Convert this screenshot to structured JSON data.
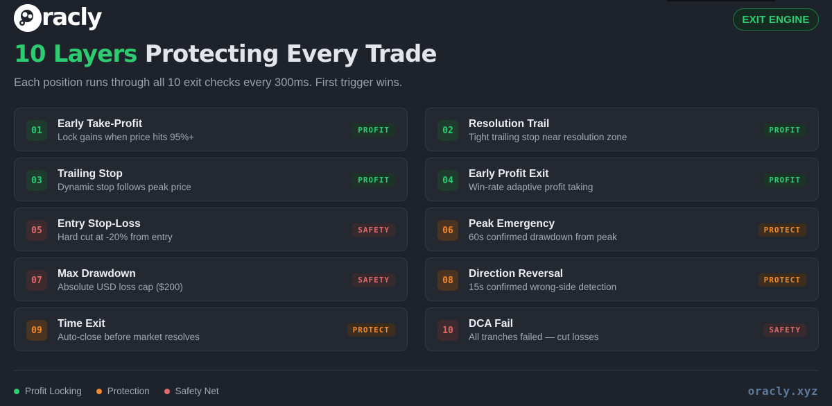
{
  "brand": {
    "logo_text": "racly",
    "logo_icon": "oracly-logo-icon",
    "site": "oracly.xyz"
  },
  "header": {
    "exit_button_label": "EXIT ENGINE",
    "title_accent": "10 Layers",
    "title_rest": "Protecting Every Trade",
    "subtitle": "Each position runs through all 10 exit checks every 300ms. First trigger wins."
  },
  "colors": {
    "profit": "#2ecc71",
    "protect": "#f08a2c",
    "safety": "#e06a6a"
  },
  "layers": [
    {
      "num": "01",
      "title": "Early Take-Profit",
      "desc": "Lock gains when price hits 95%+",
      "badge": "PROFIT",
      "kind": "profit"
    },
    {
      "num": "02",
      "title": "Resolution Trail",
      "desc": "Tight trailing stop near resolution zone",
      "badge": "PROFIT",
      "kind": "profit"
    },
    {
      "num": "03",
      "title": "Trailing Stop",
      "desc": "Dynamic stop follows peak price",
      "badge": "PROFIT",
      "kind": "profit"
    },
    {
      "num": "04",
      "title": "Early Profit Exit",
      "desc": "Win-rate adaptive profit taking",
      "badge": "PROFIT",
      "kind": "profit"
    },
    {
      "num": "05",
      "title": "Entry Stop-Loss",
      "desc": "Hard cut at -20% from entry",
      "badge": "SAFETY",
      "kind": "safety"
    },
    {
      "num": "06",
      "title": "Peak Emergency",
      "desc": "60s confirmed drawdown from peak",
      "badge": "PROTECT",
      "kind": "protect"
    },
    {
      "num": "07",
      "title": "Max Drawdown",
      "desc": "Absolute USD loss cap ($200)",
      "badge": "SAFETY",
      "kind": "safety"
    },
    {
      "num": "08",
      "title": "Direction Reversal",
      "desc": "15s confirmed wrong-side detection",
      "badge": "PROTECT",
      "kind": "protect"
    },
    {
      "num": "09",
      "title": "Time Exit",
      "desc": "Auto-close before market resolves",
      "badge": "PROTECT",
      "kind": "protect"
    },
    {
      "num": "10",
      "title": "DCA Fail",
      "desc": "All tranches failed — cut losses",
      "badge": "SAFETY",
      "kind": "safety"
    }
  ],
  "legend": [
    {
      "label": "Profit Locking",
      "kind": "profit"
    },
    {
      "label": "Protection",
      "kind": "protect"
    },
    {
      "label": "Safety Net",
      "kind": "safety"
    }
  ]
}
